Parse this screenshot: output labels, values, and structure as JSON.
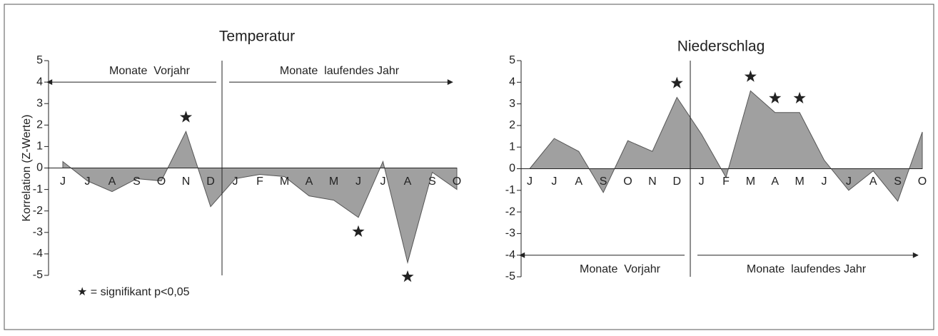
{
  "chart_data": [
    {
      "type": "area",
      "title": "Temperatur",
      "y_label": "Korrelation (Z-Werte)",
      "categories": [
        "J",
        "J",
        "A",
        "S",
        "O",
        "N",
        "D",
        "J",
        "F",
        "M",
        "A",
        "M",
        "J",
        "J",
        "A",
        "S",
        "O"
      ],
      "values": [
        0.3,
        -0.6,
        -1.1,
        -0.5,
        -0.6,
        1.7,
        -1.8,
        -0.5,
        -0.3,
        -0.4,
        -1.3,
        -1.5,
        -2.3,
        0.3,
        -4.4,
        -0.2,
        -1.0
      ],
      "significant": [
        5,
        12,
        14
      ],
      "color": "#a0a0a0",
      "ylim": [
        -5,
        5
      ],
      "yticks": [
        -5,
        -4,
        -3,
        -2,
        -1,
        0,
        1,
        2,
        3,
        4,
        5
      ],
      "annotations": [
        "Monate  Vorjahr",
        "Monate  laufendes Jahr"
      ],
      "legend": "★ = signifikant p<0,05"
    },
    {
      "type": "area",
      "title": "Niederschlag",
      "categories": [
        "J",
        "J",
        "A",
        "S",
        "O",
        "N",
        "D",
        "J",
        "F",
        "M",
        "A",
        "M",
        "J",
        "J",
        "A",
        "S",
        "O"
      ],
      "values": [
        0,
        1.4,
        0.8,
        -1.1,
        1.3,
        0.8,
        3.3,
        1.6,
        -0.4,
        3.6,
        2.6,
        2.6,
        0.4,
        -1.0,
        -0.1,
        -1.5,
        1.7
      ],
      "significant": [
        6,
        9,
        10,
        11
      ],
      "color": "#a0a0a0",
      "ylim": [
        -5,
        5
      ],
      "yticks": [
        -5,
        -4,
        -3,
        -2,
        -1,
        0,
        1,
        2,
        3,
        4,
        5
      ],
      "annotations": [
        "Monate  Vorjahr",
        "Monate  laufendes Jahr"
      ]
    }
  ]
}
